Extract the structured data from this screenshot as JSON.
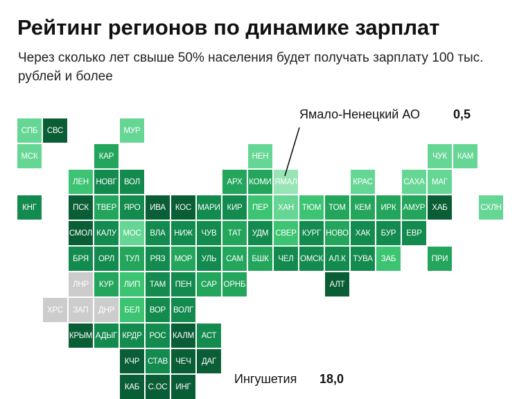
{
  "header": {
    "title": "Рейтинг регионов по динамике зарплат",
    "subtitle": "Через сколько лет свыше 50% населения будет получать зарплату 100 тыс. рублей и более"
  },
  "callouts": {
    "top": {
      "name": "Ямало-Ненецкий АО",
      "value": "0,5"
    },
    "bottom": {
      "name": "Ингушетия",
      "value": "18,0"
    }
  },
  "colors": {
    "c1": "#0a5e36",
    "c2": "#138a4e",
    "c3": "#23a65c",
    "c4": "#3cc472",
    "c5": "#66d695",
    "c6": "#97e4b5",
    "nodata": "#cccccc"
  },
  "regions": [
    {
      "label": "СПБ",
      "col": 0,
      "row": 0,
      "shade": "c5"
    },
    {
      "label": "СВС",
      "col": 1,
      "row": 0,
      "shade": "c1"
    },
    {
      "label": "МУР",
      "col": 4,
      "row": 0,
      "shade": "c5"
    },
    {
      "label": "МСК",
      "col": 0,
      "row": 1,
      "shade": "c5"
    },
    {
      "label": "КАР",
      "col": 3,
      "row": 1,
      "shade": "c3"
    },
    {
      "label": "НЕН",
      "col": 9,
      "row": 1,
      "shade": "c5"
    },
    {
      "label": "ЧУК",
      "col": 16,
      "row": 1,
      "shade": "c5"
    },
    {
      "label": "КАМ",
      "col": 17,
      "row": 1,
      "shade": "c5"
    },
    {
      "label": "ЛЕН",
      "col": 2,
      "row": 2,
      "shade": "c4"
    },
    {
      "label": "НОВГ",
      "col": 3,
      "row": 2,
      "shade": "c2"
    },
    {
      "label": "ВОЛ",
      "col": 4,
      "row": 2,
      "shade": "c2"
    },
    {
      "label": "АРХ",
      "col": 8,
      "row": 2,
      "shade": "c3"
    },
    {
      "label": "КОМИ",
      "col": 9,
      "row": 2,
      "shade": "c3"
    },
    {
      "label": "ЯМАЛ",
      "col": 10,
      "row": 2,
      "shade": "c6"
    },
    {
      "label": "КРАС",
      "col": 13,
      "row": 2,
      "shade": "c5"
    },
    {
      "label": "САХА",
      "col": 15,
      "row": 2,
      "shade": "c5"
    },
    {
      "label": "МАГ",
      "col": 16,
      "row": 2,
      "shade": "c5"
    },
    {
      "label": "КНГ",
      "col": 0,
      "row": 3,
      "shade": "c2"
    },
    {
      "label": "ПСК",
      "col": 2,
      "row": 3,
      "shade": "c1"
    },
    {
      "label": "ТВЕР",
      "col": 3,
      "row": 3,
      "shade": "c3"
    },
    {
      "label": "ЯРО",
      "col": 4,
      "row": 3,
      "shade": "c2"
    },
    {
      "label": "ИВА",
      "col": 5,
      "row": 3,
      "shade": "c1"
    },
    {
      "label": "КОС",
      "col": 6,
      "row": 3,
      "shade": "c1"
    },
    {
      "label": "МАРИ",
      "col": 7,
      "row": 3,
      "shade": "c2"
    },
    {
      "label": "КИР",
      "col": 8,
      "row": 3,
      "shade": "c2"
    },
    {
      "label": "ПЕР",
      "col": 9,
      "row": 3,
      "shade": "c4"
    },
    {
      "label": "ХАН",
      "col": 10,
      "row": 3,
      "shade": "c5"
    },
    {
      "label": "ТЮМ",
      "col": 11,
      "row": 3,
      "shade": "c4"
    },
    {
      "label": "ТОМ",
      "col": 12,
      "row": 3,
      "shade": "c3"
    },
    {
      "label": "КЕМ",
      "col": 13,
      "row": 3,
      "shade": "c3"
    },
    {
      "label": "ИРК",
      "col": 14,
      "row": 3,
      "shade": "c3"
    },
    {
      "label": "АМУР",
      "col": 15,
      "row": 3,
      "shade": "c3"
    },
    {
      "label": "ХАБ",
      "col": 16,
      "row": 3,
      "shade": "c1"
    },
    {
      "label": "СХЛН",
      "col": 18,
      "row": 3,
      "shade": "c5"
    },
    {
      "label": "СМОЛ",
      "col": 2,
      "row": 4,
      "shade": "c1"
    },
    {
      "label": "КАЛУ",
      "col": 3,
      "row": 4,
      "shade": "c2"
    },
    {
      "label": "МОС",
      "col": 4,
      "row": 4,
      "shade": "c5"
    },
    {
      "label": "ВЛА",
      "col": 5,
      "row": 4,
      "shade": "c2"
    },
    {
      "label": "НИЖ",
      "col": 6,
      "row": 4,
      "shade": "c2"
    },
    {
      "label": "ЧУВ",
      "col": 7,
      "row": 4,
      "shade": "c2"
    },
    {
      "label": "ТАТ",
      "col": 8,
      "row": 4,
      "shade": "c3"
    },
    {
      "label": "УДМ",
      "col": 9,
      "row": 4,
      "shade": "c2"
    },
    {
      "label": "СВЕР",
      "col": 10,
      "row": 4,
      "shade": "c4"
    },
    {
      "label": "КУРГ",
      "col": 11,
      "row": 4,
      "shade": "c2"
    },
    {
      "label": "НОВО",
      "col": 12,
      "row": 4,
      "shade": "c3"
    },
    {
      "label": "ХАК",
      "col": 13,
      "row": 4,
      "shade": "c2"
    },
    {
      "label": "БУР",
      "col": 14,
      "row": 4,
      "shade": "c2"
    },
    {
      "label": "ЕВР",
      "col": 15,
      "row": 4,
      "shade": "c2"
    },
    {
      "label": "БРЯ",
      "col": 2,
      "row": 5,
      "shade": "c2"
    },
    {
      "label": "ОРЛ",
      "col": 3,
      "row": 5,
      "shade": "c2"
    },
    {
      "label": "ТУЛ",
      "col": 4,
      "row": 5,
      "shade": "c3"
    },
    {
      "label": "РЯЗ",
      "col": 5,
      "row": 5,
      "shade": "c2"
    },
    {
      "label": "МОР",
      "col": 6,
      "row": 5,
      "shade": "c3"
    },
    {
      "label": "УЛЬ",
      "col": 7,
      "row": 5,
      "shade": "c2"
    },
    {
      "label": "САМ",
      "col": 8,
      "row": 5,
      "shade": "c3"
    },
    {
      "label": "БШК",
      "col": 9,
      "row": 5,
      "shade": "c3"
    },
    {
      "label": "ЧЕЛ",
      "col": 10,
      "row": 5,
      "shade": "c2"
    },
    {
      "label": "ОМСК",
      "col": 11,
      "row": 5,
      "shade": "c2"
    },
    {
      "label": "АЛ.К",
      "col": 12,
      "row": 5,
      "shade": "c2"
    },
    {
      "label": "ТУВА",
      "col": 13,
      "row": 5,
      "shade": "c2"
    },
    {
      "label": "ЗАБ",
      "col": 14,
      "row": 5,
      "shade": "c4"
    },
    {
      "label": "ПРИ",
      "col": 16,
      "row": 5,
      "shade": "c3"
    },
    {
      "label": "ЛНР",
      "col": 2,
      "row": 6,
      "shade": "nodata"
    },
    {
      "label": "КУР",
      "col": 3,
      "row": 6,
      "shade": "c3"
    },
    {
      "label": "ЛИП",
      "col": 4,
      "row": 6,
      "shade": "c4"
    },
    {
      "label": "ТАМ",
      "col": 5,
      "row": 6,
      "shade": "c2"
    },
    {
      "label": "ПЕН",
      "col": 6,
      "row": 6,
      "shade": "c2"
    },
    {
      "label": "САР",
      "col": 7,
      "row": 6,
      "shade": "c3"
    },
    {
      "label": "ОРНБ",
      "col": 8,
      "row": 6,
      "shade": "c3"
    },
    {
      "label": "АЛТ",
      "col": 12,
      "row": 6,
      "shade": "c1"
    },
    {
      "label": "ХРС",
      "col": 1,
      "row": 7,
      "shade": "nodata"
    },
    {
      "label": "ЗАП",
      "col": 2,
      "row": 7,
      "shade": "nodata"
    },
    {
      "label": "ДНР",
      "col": 3,
      "row": 7,
      "shade": "nodata"
    },
    {
      "label": "БЕЛ",
      "col": 4,
      "row": 7,
      "shade": "c4"
    },
    {
      "label": "ВОР",
      "col": 5,
      "row": 7,
      "shade": "c2"
    },
    {
      "label": "ВОЛГ",
      "col": 6,
      "row": 7,
      "shade": "c2"
    },
    {
      "label": "КРЫМ",
      "col": 2,
      "row": 8,
      "shade": "c1"
    },
    {
      "label": "АДЫГ",
      "col": 3,
      "row": 8,
      "shade": "c2"
    },
    {
      "label": "КРДР",
      "col": 4,
      "row": 8,
      "shade": "c2"
    },
    {
      "label": "РОС",
      "col": 5,
      "row": 8,
      "shade": "c2"
    },
    {
      "label": "КАЛМ",
      "col": 6,
      "row": 8,
      "shade": "c1"
    },
    {
      "label": "АСТ",
      "col": 7,
      "row": 8,
      "shade": "c2"
    },
    {
      "label": "КЧР",
      "col": 4,
      "row": 9,
      "shade": "c1"
    },
    {
      "label": "СТАВ",
      "col": 5,
      "row": 9,
      "shade": "c2"
    },
    {
      "label": "ЧЕЧ",
      "col": 6,
      "row": 9,
      "shade": "c1"
    },
    {
      "label": "ДАГ",
      "col": 7,
      "row": 9,
      "shade": "c1"
    },
    {
      "label": "КАБ",
      "col": 4,
      "row": 10,
      "shade": "c1"
    },
    {
      "label": "С.ОС",
      "col": 5,
      "row": 10,
      "shade": "c1"
    },
    {
      "label": "ИНГ",
      "col": 6,
      "row": 10,
      "shade": "c1"
    }
  ]
}
